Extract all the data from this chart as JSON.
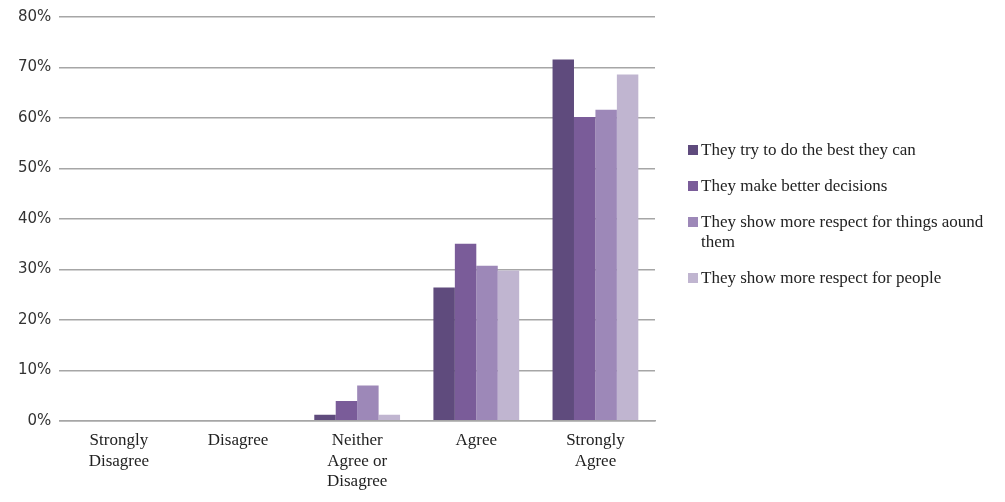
{
  "chart_data": {
    "type": "bar",
    "categories": [
      "Strongly Disagree",
      "Disagree",
      "Neither Agree or Disagree",
      "Agree",
      "Strongly Agree"
    ],
    "series": [
      {
        "name": "They try to do the best they can",
        "color": "#5f4b7d",
        "values": [
          0,
          0,
          1.2,
          26.4,
          71.6
        ]
      },
      {
        "name": "They make better decisions",
        "color": "#7a5c99",
        "values": [
          0,
          0,
          3.9,
          35.1,
          60.2
        ]
      },
      {
        "name": "They show more respect for things aound them",
        "color": "#9d88b8",
        "values": [
          0,
          0,
          7.0,
          30.7,
          61.6
        ]
      },
      {
        "name": "They show more respect for people",
        "color": "#c0b5d0",
        "values": [
          0,
          0,
          1.2,
          29.8,
          68.6
        ]
      }
    ],
    "ylim": [
      0,
      80
    ],
    "yticks": [
      {
        "value": 0,
        "label": "0%"
      },
      {
        "value": 10,
        "label": "10%"
      },
      {
        "value": 20,
        "label": "20%"
      },
      {
        "value": 30,
        "label": "30%"
      },
      {
        "value": 40,
        "label": "40%"
      },
      {
        "value": 50,
        "label": "50%"
      },
      {
        "value": 60,
        "label": "60%"
      },
      {
        "value": 70,
        "label": "70%"
      },
      {
        "value": 80,
        "label": "80%"
      }
    ],
    "grid": "y",
    "legend": "right"
  }
}
